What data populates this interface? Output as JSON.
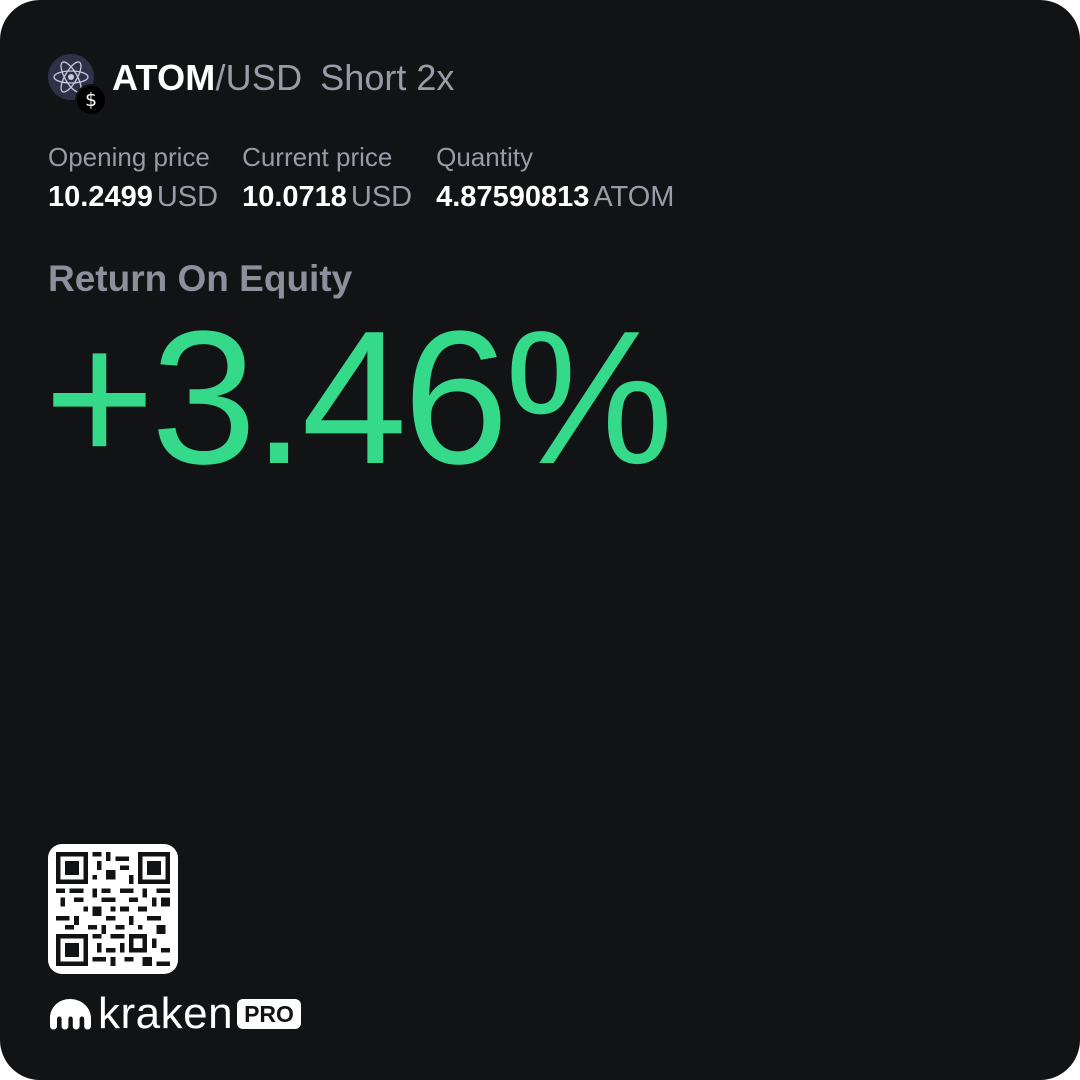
{
  "header": {
    "base": "ATOM",
    "separator": "/",
    "quote": "USD",
    "position": "Short 2x",
    "base_icon": "cosmos-atom-icon",
    "quote_badge": "$"
  },
  "stats": [
    {
      "label": "Opening price",
      "value": "10.2499",
      "unit": "USD"
    },
    {
      "label": "Current price",
      "value": "10.0718",
      "unit": "USD"
    },
    {
      "label": "Quantity",
      "value": "4.87590813",
      "unit": "ATOM"
    }
  ],
  "roe": {
    "label": "Return On Equity",
    "value": "+3.46%"
  },
  "footer": {
    "logo_word": "kraken",
    "badge": "PRO"
  },
  "colors": {
    "background": "#121315",
    "positive": "#34d98a",
    "muted": "#9b9ba8",
    "text": "#ffffff"
  }
}
